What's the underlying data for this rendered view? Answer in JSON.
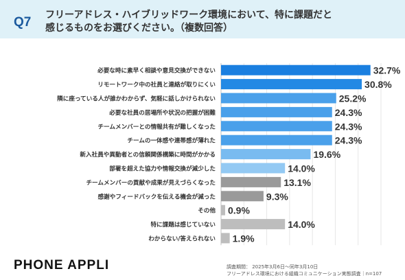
{
  "header": {
    "qnum": "Q7",
    "title_line1": "フリーアドレス・ハイブリッドワーク環境において、特に課題だと",
    "title_line2": "感じるものをお選びください。（複数回答）"
  },
  "chart_data": {
    "type": "bar",
    "orientation": "horizontal",
    "xlim": [
      0,
      35
    ],
    "grid": true,
    "categories": [
      "必要な時に素早く相談や意見交換ができない",
      "リモートワーク中の社員と連絡が取りにくい",
      "隣に座っている人が誰かわからず、気軽に話しかけられない",
      "必要な社員の居場所や状況の把握が困難",
      "チームメンバーとの情報共有が難しくなった",
      "チームの一体感や連帯感が薄れた",
      "新入社員や異動者との信頼関係構築に時間がかかる",
      "部署を超えた協力や情報交換が減少した",
      "チームメンバーの貢献や成果が見えづらくなった",
      "感謝やフィードバックを伝える機会が減った",
      "その他",
      "特に課題は感じていない",
      "わからない/答えられない"
    ],
    "values": [
      32.7,
      30.8,
      25.2,
      24.3,
      24.3,
      24.3,
      19.6,
      14.0,
      13.1,
      9.3,
      0.9,
      14.0,
      1.9
    ],
    "value_labels": [
      "32.7%",
      "30.8%",
      "25.2%",
      "24.3%",
      "24.3%",
      "24.3%",
      "19.6%",
      "14.0%",
      "13.1%",
      "9.3%",
      "0.9%",
      "14.0%",
      "1.9%"
    ],
    "colors": [
      "#1a7fe0",
      "#2389e4",
      "#4aa0ea",
      "#4aa0ea",
      "#4aa0ea",
      "#4aa0ea",
      "#79bbf0",
      "#93c9f3",
      "#9a9a9a",
      "#9a9a9a",
      "#bdbdbd",
      "#bdbdbd",
      "#bdbdbd"
    ]
  },
  "footer": {
    "brand": "PHONE APPLI",
    "note_line1": "調査期間： 2025年3月6日～同年3月10日",
    "note_line2": "フリーアドレス環境における組織コミュニケーション実態調査｜n=107"
  }
}
